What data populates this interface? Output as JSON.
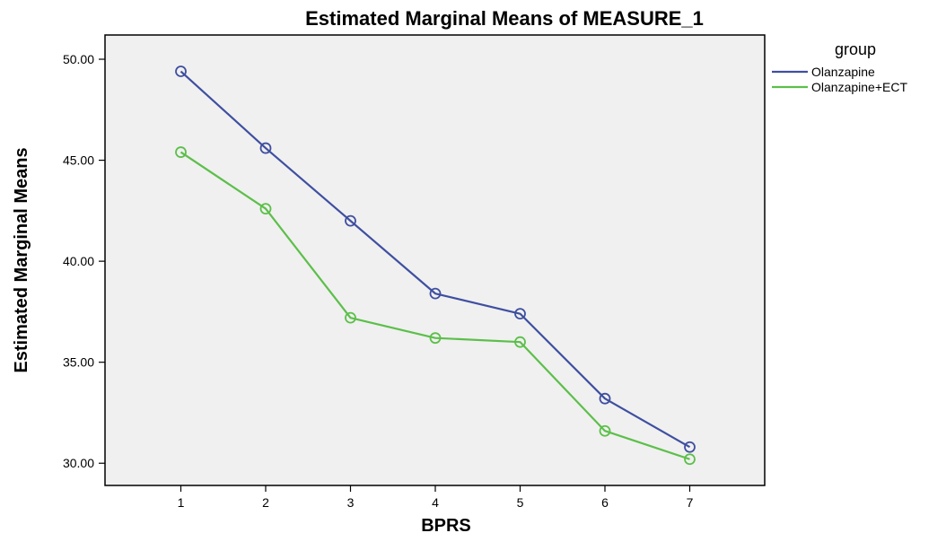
{
  "chart_data": {
    "type": "line",
    "title": "Estimated Marginal Means of MEASURE_1",
    "xlabel": "BPRS",
    "ylabel": "Estimated Marginal Means",
    "categories": [
      "1",
      "2",
      "3",
      "4",
      "5",
      "6",
      "7"
    ],
    "ylim": [
      28.9,
      51.2
    ],
    "yticks": [
      "30.00",
      "35.00",
      "40.00",
      "45.00",
      "50.00"
    ],
    "grid": false,
    "plot_background": "#f0f0f0",
    "legend": {
      "title": "group",
      "placement": "right, outside plot"
    },
    "series": [
      {
        "name": "Olanzapine",
        "color": "#3f4fa0",
        "values": [
          49.4,
          45.6,
          42.0,
          38.4,
          37.4,
          33.2,
          30.8
        ]
      },
      {
        "name": "Olanzapine+ECT",
        "color": "#5cbf4a",
        "values": [
          45.4,
          42.6,
          37.2,
          36.2,
          36.0,
          31.6,
          30.2
        ]
      }
    ]
  }
}
